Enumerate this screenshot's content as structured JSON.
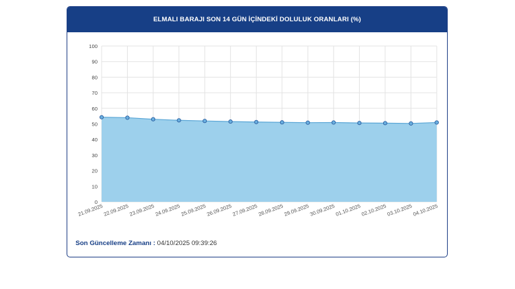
{
  "header": {
    "title": "ELMALI BARAJI SON 14 GÜN İÇİNDEKİ DOLULUK ORANLARI (%)"
  },
  "footer": {
    "label": "Son Güncelleme Zamanı :",
    "value": "04/10/2025 09:39:26"
  },
  "colors": {
    "header_bg": "#173f86",
    "area_fill": "#9dd0ec",
    "line": "#5aa6d6",
    "point_fill": "#6ab0e0",
    "point_stroke": "#2a5d9f"
  },
  "chart_data": {
    "type": "area",
    "title": "ELMALI BARAJI SON 14 GÜN İÇİNDEKİ DOLULUK ORANLARI (%)",
    "categories": [
      "21.09.2025",
      "22.09.2025",
      "23.09.2025",
      "24.09.2025",
      "25.09.2025",
      "26.09.2025",
      "27.09.2025",
      "28.09.2025",
      "29.09.2025",
      "30.09.2025",
      "01.10.2025",
      "02.10.2025",
      "03.10.2025",
      "04.10.2025"
    ],
    "series": [
      {
        "values": [
          54.3,
          54.0,
          53.0,
          52.3,
          51.9,
          51.5,
          51.2,
          51.0,
          50.8,
          50.9,
          50.6,
          50.5,
          50.3,
          50.9
        ]
      }
    ],
    "ylim": [
      0,
      100
    ],
    "yticks": [
      0,
      10,
      20,
      30,
      40,
      50,
      60,
      70,
      80,
      90,
      100
    ],
    "grid": true,
    "xlabel": "",
    "ylabel": ""
  }
}
